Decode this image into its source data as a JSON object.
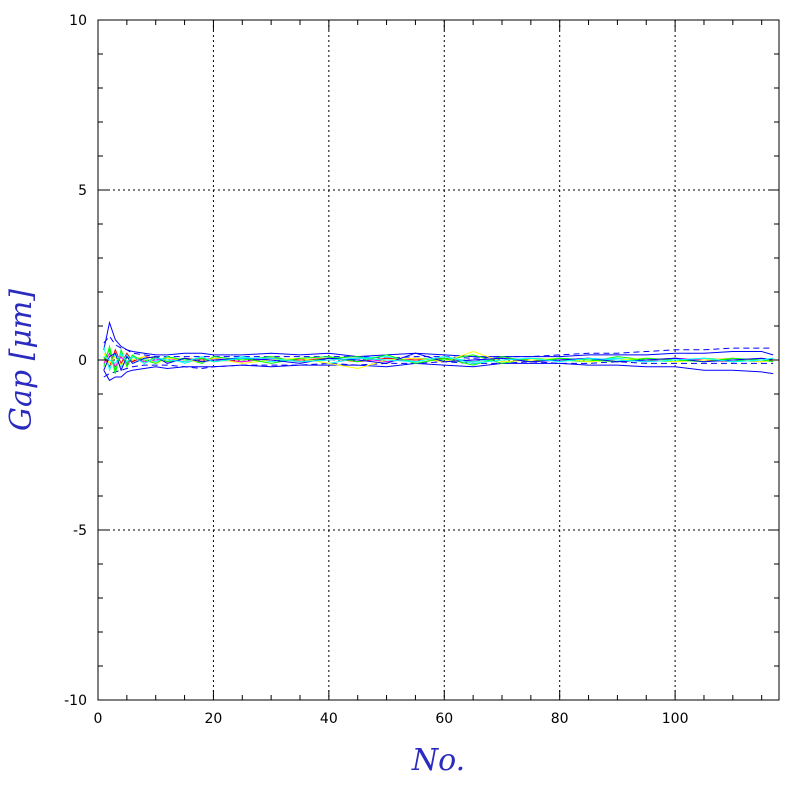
{
  "chart_data": {
    "type": "line",
    "title": "",
    "xlabel": "No.",
    "ylabel": "Gap [μm]",
    "xlim": [
      0,
      118
    ],
    "ylim": [
      -10,
      10
    ],
    "x_ticks": [
      0,
      20,
      40,
      60,
      80,
      100
    ],
    "x_tick_labels": [
      "0",
      "20",
      "40",
      "60",
      "80",
      "100"
    ],
    "y_ticks": [
      -10,
      -5,
      0,
      5,
      10
    ],
    "y_tick_labels": [
      "-10",
      "-5",
      "0",
      "5",
      "10"
    ],
    "grid": true,
    "x": [
      1,
      2,
      3,
      4,
      5,
      6,
      8,
      10,
      12,
      15,
      18,
      20,
      25,
      30,
      35,
      40,
      45,
      50,
      55,
      60,
      65,
      70,
      75,
      80,
      85,
      90,
      95,
      100,
      105,
      110,
      115,
      117
    ],
    "series": [
      {
        "color": "#0000ff",
        "dashed": false,
        "values": [
          0.3,
          1.1,
          0.6,
          0.4,
          0.3,
          0.25,
          0.2,
          0.15,
          0.15,
          0.2,
          0.2,
          0.15,
          0.15,
          0.2,
          0.15,
          0.2,
          0.1,
          0.15,
          0.2,
          0.15,
          0.1,
          0.1,
          0.1,
          0.1,
          0.15,
          0.15,
          0.15,
          0.2,
          0.2,
          0.25,
          0.25,
          0.15
        ]
      },
      {
        "color": "#0000ff",
        "dashed": false,
        "values": [
          -0.3,
          -0.6,
          -0.5,
          -0.5,
          -0.35,
          -0.3,
          -0.25,
          -0.2,
          -0.25,
          -0.2,
          -0.2,
          -0.2,
          -0.15,
          -0.2,
          -0.15,
          -0.15,
          -0.15,
          -0.2,
          -0.1,
          -0.15,
          -0.2,
          -0.1,
          -0.1,
          -0.1,
          -0.15,
          -0.15,
          -0.2,
          -0.2,
          -0.3,
          -0.3,
          -0.35,
          -0.4
        ]
      },
      {
        "color": "#0000ff",
        "dashed": true,
        "values": [
          0.5,
          0.7,
          0.45,
          0.35,
          0.3,
          0.2,
          0.15,
          0.1,
          0.1,
          0.1,
          0.1,
          0.1,
          0.1,
          0.1,
          0.1,
          0.1,
          0.1,
          0.05,
          0.1,
          0.1,
          0.05,
          0.1,
          0.1,
          0.15,
          0.2,
          0.2,
          0.25,
          0.3,
          0.3,
          0.35,
          0.35,
          0.35
        ]
      },
      {
        "color": "#0000ff",
        "dashed": true,
        "values": [
          -0.5,
          -0.4,
          -0.35,
          -0.3,
          -0.25,
          -0.2,
          -0.15,
          -0.15,
          -0.15,
          -0.2,
          -0.25,
          -0.2,
          -0.15,
          -0.15,
          -0.15,
          -0.1,
          -0.15,
          -0.1,
          -0.1,
          -0.05,
          -0.1,
          -0.1,
          -0.05,
          -0.1,
          -0.1,
          -0.05,
          -0.1,
          -0.1,
          -0.1,
          -0.1,
          -0.1,
          -0.1
        ]
      },
      {
        "color": "#ff0000",
        "dashed": false,
        "values": [
          0.1,
          -0.2,
          0.3,
          -0.1,
          0.2,
          -0.05,
          0.1,
          0.05,
          -0.05,
          0.05,
          0.0,
          0.05,
          -0.05,
          0.05,
          0.0,
          0.05,
          -0.05,
          0.05,
          0.0,
          0.05,
          -0.05,
          0.05,
          0.0,
          0.0,
          0.05,
          -0.05,
          0.0,
          0.05,
          0.0,
          -0.05,
          0.05,
          0.0
        ]
      },
      {
        "color": "#00ff00",
        "dashed": false,
        "values": [
          -0.2,
          0.4,
          -0.3,
          0.2,
          -0.1,
          0.15,
          -0.1,
          0.1,
          -0.05,
          0.05,
          -0.1,
          0.1,
          0.0,
          0.1,
          -0.05,
          0.05,
          0.1,
          -0.05,
          0.05,
          0.0,
          0.15,
          -0.1,
          0.05,
          0.0,
          -0.05,
          0.1,
          0.0,
          -0.05,
          0.05,
          0.0,
          -0.05,
          0.05
        ]
      },
      {
        "color": "#00ffff",
        "dashed": false,
        "values": [
          0.4,
          -0.3,
          0.2,
          -0.2,
          0.15,
          -0.1,
          0.05,
          -0.05,
          0.1,
          -0.1,
          0.05,
          -0.05,
          0.1,
          -0.05,
          0.05,
          -0.1,
          0.05,
          0.1,
          -0.05,
          0.1,
          -0.05,
          0.05,
          -0.05,
          0.05,
          0.0,
          0.05,
          -0.05,
          0.0,
          0.05,
          -0.05,
          0.0,
          0.05
        ]
      },
      {
        "color": "#ff00ff",
        "dashed": false,
        "values": [
          -0.1,
          0.2,
          -0.2,
          0.1,
          -0.15,
          0.1,
          -0.05,
          0.0,
          0.05,
          -0.05,
          0.05,
          0.0,
          -0.05,
          0.05,
          -0.05,
          0.0,
          0.05,
          -0.05,
          0.05,
          -0.05,
          0.0,
          0.05,
          -0.05,
          0.0,
          0.05,
          0.0,
          -0.05,
          0.05,
          0.0,
          0.05,
          -0.05,
          0.0
        ]
      },
      {
        "color": "#ffff00",
        "dashed": false,
        "values": [
          0.2,
          -0.1,
          0.1,
          -0.15,
          0.05,
          0.0,
          0.1,
          -0.1,
          0.05,
          0.0,
          -0.05,
          0.05,
          -0.1,
          0.0,
          0.05,
          -0.1,
          -0.25,
          0.0,
          0.05,
          -0.05,
          0.25,
          -0.05,
          0.0,
          0.05,
          -0.05,
          0.0,
          0.05,
          -0.05,
          0.0,
          0.05,
          -0.05,
          0.0
        ]
      },
      {
        "color": "#00ff00",
        "dashed": false,
        "values": [
          0.0,
          0.3,
          -0.4,
          0.3,
          -0.2,
          0.1,
          0.0,
          -0.1,
          0.1,
          0.0,
          0.05,
          -0.05,
          0.05,
          -0.1,
          0.05,
          0.1,
          -0.05,
          0.15,
          -0.1,
          0.05,
          -0.15,
          0.1,
          -0.05,
          0.05,
          0.0,
          -0.05,
          0.05,
          0.0,
          -0.05,
          0.05,
          0.0,
          -0.05
        ]
      },
      {
        "color": "#0000ff",
        "dashed": false,
        "values": [
          -0.3,
          0.1,
          0.2,
          -0.3,
          0.1,
          -0.1,
          0.05,
          0.1,
          -0.1,
          0.05,
          -0.05,
          0.0,
          0.05,
          0.0,
          -0.1,
          0.05,
          0.0,
          -0.1,
          0.2,
          -0.05,
          0.0,
          0.05,
          -0.05,
          0.0,
          0.05,
          -0.05,
          0.0,
          0.05,
          -0.05,
          0.0,
          0.05,
          0.0
        ]
      },
      {
        "color": "#00ffff",
        "dashed": false,
        "values": [
          0.1,
          0.0,
          -0.1,
          0.2,
          -0.05,
          0.1,
          -0.1,
          0.05,
          0.0,
          -0.05,
          0.1,
          -0.05,
          0.05,
          0.05,
          -0.05,
          0.0,
          0.05,
          0.0,
          -0.05,
          0.1,
          -0.1,
          0.0,
          0.05,
          -0.05,
          0.05,
          0.0,
          -0.05,
          0.0,
          0.05,
          -0.05,
          0.0,
          0.05
        ]
      }
    ]
  }
}
